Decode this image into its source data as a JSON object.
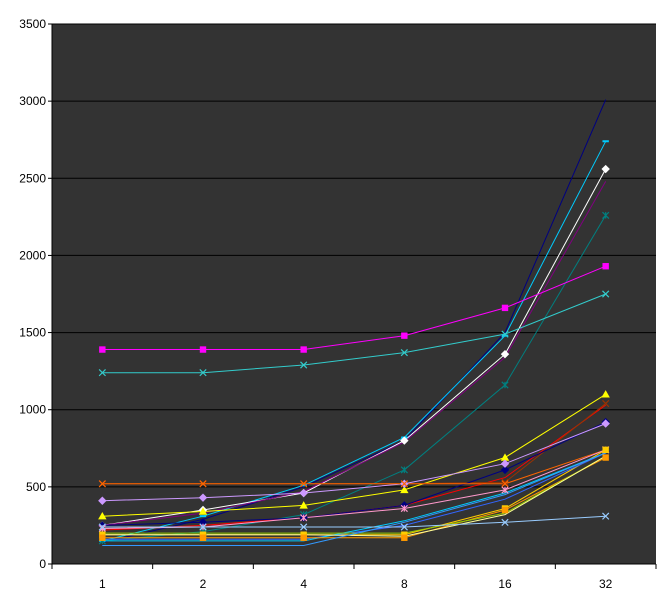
{
  "chart_data": {
    "type": "line",
    "title": "",
    "xlabel": "",
    "ylabel": "",
    "categories": [
      "1",
      "2",
      "4",
      "8",
      "16",
      "32"
    ],
    "ylim": [
      0,
      3500
    ],
    "yticks": [
      "0",
      "500",
      "1000",
      "1500",
      "2000",
      "2500",
      "3000",
      "3500"
    ],
    "plot_background": "#333333",
    "grid": true,
    "legend": "none",
    "series": [
      {
        "color": "#000080",
        "marker": "none",
        "values": [
          140,
          290,
          500,
          800,
          1500,
          3010
        ]
      },
      {
        "color": "#00CCFF",
        "marker": "dash",
        "values": [
          150,
          310,
          510,
          820,
          1480,
          2740
        ]
      },
      {
        "color": "#FFFFFF",
        "marker": "diamond",
        "values": [
          250,
          350,
          460,
          800,
          1360,
          2560
        ]
      },
      {
        "color": "#800080",
        "marker": "none",
        "values": [
          250,
          330,
          470,
          790,
          1340,
          2480
        ]
      },
      {
        "color": "#008080",
        "marker": "asterisk",
        "values": [
          150,
          210,
          320,
          610,
          1160,
          2260
        ]
      },
      {
        "color": "#FF00FF",
        "marker": "square",
        "values": [
          1390,
          1390,
          1390,
          1480,
          1660,
          1930
        ]
      },
      {
        "color": "#33CCCC",
        "marker": "x",
        "values": [
          1240,
          1240,
          1290,
          1370,
          1490,
          1750
        ]
      },
      {
        "color": "#FFFF00",
        "marker": "triangle",
        "values": [
          310,
          340,
          380,
          480,
          690,
          1100
        ]
      },
      {
        "color": "#FF0000",
        "marker": "none",
        "values": [
          220,
          250,
          300,
          380,
          560,
          1030
        ]
      },
      {
        "color": "#993300",
        "marker": "x",
        "values": [
          520,
          520,
          520,
          520,
          530,
          1040
        ]
      },
      {
        "color": "#000080",
        "marker": "diamond",
        "values": [
          250,
          270,
          300,
          380,
          610,
          920
        ]
      },
      {
        "color": "#CC99FF",
        "marker": "diamond",
        "values": [
          410,
          430,
          460,
          520,
          650,
          910
        ]
      },
      {
        "color": "#FF6600",
        "marker": "x",
        "values": [
          520,
          520,
          520,
          520,
          520,
          740
        ]
      },
      {
        "color": "#FF99CC",
        "marker": "asterisk",
        "values": [
          230,
          240,
          300,
          360,
          480,
          740
        ]
      },
      {
        "color": "#FFCC00",
        "marker": "square",
        "values": [
          190,
          190,
          190,
          190,
          360,
          740
        ]
      },
      {
        "color": "#3366FF",
        "marker": "none",
        "values": [
          160,
          160,
          160,
          250,
          420,
          720
        ]
      },
      {
        "color": "#00CCFF",
        "marker": "none",
        "values": [
          150,
          150,
          150,
          280,
          460,
          720
        ]
      },
      {
        "color": "#FF9900",
        "marker": "square",
        "values": [
          170,
          170,
          170,
          170,
          350,
          690
        ]
      },
      {
        "color": "#99CC00",
        "marker": "none",
        "values": [
          200,
          200,
          200,
          200,
          330,
          700
        ]
      },
      {
        "color": "#FFFF99",
        "marker": "none",
        "values": [
          190,
          190,
          190,
          180,
          320,
          700
        ]
      },
      {
        "color": "#3399FF",
        "marker": "none",
        "values": [
          120,
          120,
          120,
          270,
          450,
          720
        ]
      },
      {
        "color": "#99CCFF",
        "marker": "x",
        "values": [
          240,
          240,
          240,
          240,
          270,
          310
        ]
      }
    ]
  }
}
